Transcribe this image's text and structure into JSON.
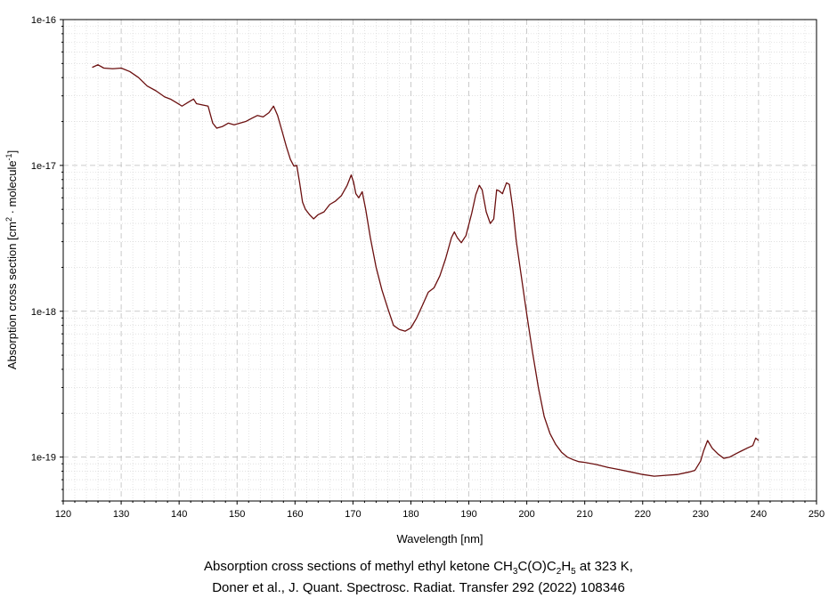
{
  "chart_data": {
    "type": "line",
    "xlabel": "Wavelength [nm]",
    "ylabel": {
      "prefix": "Absorption cross section [cm",
      "exp1": "2",
      "middle": " · molecule",
      "exp2": "-1",
      "suffix": "]"
    },
    "xlim": [
      120,
      250
    ],
    "ylim": [
      5e-20,
      1e-16
    ],
    "yscale": "log",
    "x_ticks": [
      "120",
      "130",
      "140",
      "150",
      "160",
      "170",
      "180",
      "190",
      "200",
      "210",
      "220",
      "230",
      "240",
      "250"
    ],
    "y_ticks": [
      "1e-16",
      "1e-17",
      "1e-18",
      "1e-19"
    ],
    "grid": true,
    "series": [
      {
        "color": "#6b0f0f",
        "x": [
          125.0,
          126.0,
          127.0,
          128.5,
          130.0,
          131.5,
          133.0,
          134.5,
          136.0,
          137.5,
          138.5,
          139.5,
          140.5,
          141.5,
          142.5,
          143.0,
          144.0,
          145.0,
          145.8,
          146.5,
          147.5,
          148.5,
          149.5,
          150.5,
          151.5,
          152.5,
          153.5,
          154.5,
          155.5,
          156.3,
          157.0,
          157.8,
          158.5,
          159.2,
          159.8,
          160.3,
          160.8,
          161.3,
          161.8,
          162.5,
          163.2,
          164.0,
          165.0,
          166.0,
          167.0,
          168.0,
          169.0,
          169.7,
          170.1,
          170.5,
          171.0,
          171.6,
          172.2,
          173.0,
          174.0,
          175.0,
          176.0,
          177.0,
          178.0,
          179.0,
          180.0,
          181.0,
          182.0,
          183.0,
          184.0,
          185.0,
          186.0,
          187.0,
          187.5,
          188.0,
          188.7,
          189.5,
          190.5,
          191.2,
          191.8,
          192.3,
          193.0,
          193.7,
          194.3,
          194.8,
          195.2,
          195.8,
          196.5,
          197.0,
          197.6,
          198.2,
          199.0,
          200.0,
          201.0,
          202.0,
          203.0,
          204.0,
          205.0,
          206.0,
          207.0,
          208.0,
          209.0,
          210.0,
          212.0,
          214.0,
          216.0,
          218.0,
          220.0,
          222.0,
          224.0,
          226.0,
          228.0,
          229.0,
          230.0,
          230.5,
          231.2,
          232.0,
          233.0,
          234.0,
          235.0,
          236.0,
          237.0,
          238.0,
          239.0,
          239.5,
          240.0
        ],
        "y": [
          4.7e-17,
          4.9e-17,
          4.65e-17,
          4.6e-17,
          4.65e-17,
          4.4e-17,
          4e-17,
          3.5e-17,
          3.25e-17,
          2.95e-17,
          2.85e-17,
          2.7e-17,
          2.55e-17,
          2.7e-17,
          2.85e-17,
          2.65e-17,
          2.6e-17,
          2.55e-17,
          1.95e-17,
          1.8e-17,
          1.85e-17,
          1.95e-17,
          1.9e-17,
          1.95e-17,
          2e-17,
          2.1e-17,
          2.2e-17,
          2.15e-17,
          2.3e-17,
          2.55e-17,
          2.2e-17,
          1.7e-17,
          1.35e-17,
          1.1e-17,
          9.9e-18,
          1e-17,
          7.6e-18,
          5.6e-18,
          5e-18,
          4.6e-18,
          4.3e-18,
          4.6e-18,
          4.8e-18,
          5.4e-18,
          5.7e-18,
          6.2e-18,
          7.3e-18,
          8.6e-18,
          7.7e-18,
          6.4e-18,
          6e-18,
          6.6e-18,
          5e-18,
          3.2e-18,
          2e-18,
          1.4e-18,
          1.05e-18,
          8e-19,
          7.5e-19,
          7.3e-19,
          7.7e-19,
          9e-19,
          1.1e-18,
          1.35e-18,
          1.45e-18,
          1.75e-18,
          2.3e-18,
          3.2e-18,
          3.5e-18,
          3.2e-18,
          2.95e-18,
          3.3e-18,
          4.7e-18,
          6.3e-18,
          7.3e-18,
          6.8e-18,
          4.8e-18,
          4e-18,
          4.3e-18,
          6.8e-18,
          6.7e-18,
          6.4e-18,
          7.6e-18,
          7.4e-18,
          5e-18,
          3e-18,
          1.8e-18,
          9.5e-19,
          5.2e-19,
          3e-19,
          1.9e-19,
          1.45e-19,
          1.22e-19,
          1.08e-19,
          1e-19,
          9.6e-20,
          9.3e-20,
          9.2e-20,
          8.9e-20,
          8.5e-20,
          8.2e-20,
          7.9e-20,
          7.6e-20,
          7.4e-20,
          7.5e-20,
          7.6e-20,
          7.9e-20,
          8.1e-20,
          9.4e-20,
          1.1e-19,
          1.3e-19,
          1.15e-19,
          1.05e-19,
          9.8e-20,
          1e-19,
          1.05e-19,
          1.1e-19,
          1.15e-19,
          1.2e-19,
          1.35e-19,
          1.3e-19
        ]
      }
    ]
  },
  "caption": {
    "line1": {
      "prefix": "Absorption cross sections of methyl ethyl ketone CH",
      "s1": "3",
      "m1": "C(O)C",
      "s2": "2",
      "m2": "H",
      "s3": "5",
      "suffix": " at 323 K,"
    },
    "line2": "Doner et al., J. Quant. Spectrosc. Radiat. Transfer 292 (2022) 108346"
  }
}
